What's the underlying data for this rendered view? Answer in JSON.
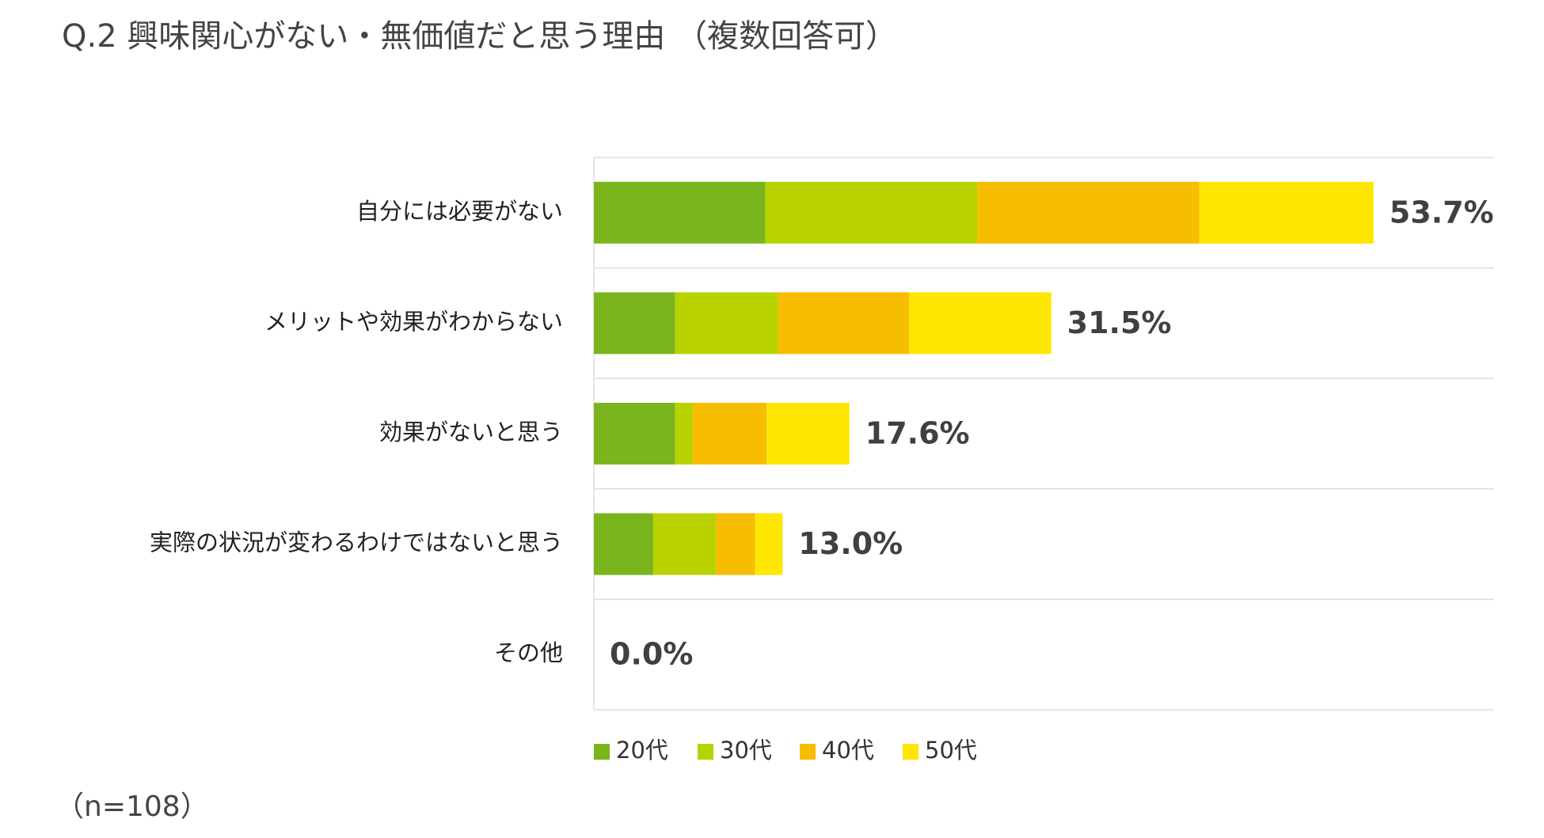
{
  "chart_data": {
    "type": "stacked-bar-horizontal",
    "title": "Q.2 興味関心がない・無価値だと思う理由 （複数回答可）",
    "categories": [
      "自分には必要がない",
      "メリットや効果がわからない",
      "効果がないと思う",
      "実際の状況が変わるわけではないと思う",
      "その他"
    ],
    "series": [
      {
        "name": "20代",
        "color": "#7ab51d",
        "values": [
          11.8,
          5.6,
          5.6,
          4.1,
          0
        ]
      },
      {
        "name": "30代",
        "color": "#b8d200",
        "values": [
          14.6,
          7.1,
          1.2,
          4.3,
          0
        ]
      },
      {
        "name": "40代",
        "color": "#f7bd00",
        "values": [
          15.3,
          9.0,
          5.1,
          2.7,
          0
        ]
      },
      {
        "name": "50代",
        "color": "#ffe600",
        "values": [
          12.0,
          9.8,
          5.7,
          1.9,
          0
        ]
      }
    ],
    "totals": [
      53.7,
      31.5,
      17.6,
      13.0,
      0.0
    ],
    "total_labels": [
      "53.7%",
      "31.5%",
      "17.6%",
      "13.0%",
      "0.0%"
    ],
    "xlim": [
      0,
      62
    ],
    "grid": true,
    "legend": "bottom",
    "note": "（n=108）"
  }
}
